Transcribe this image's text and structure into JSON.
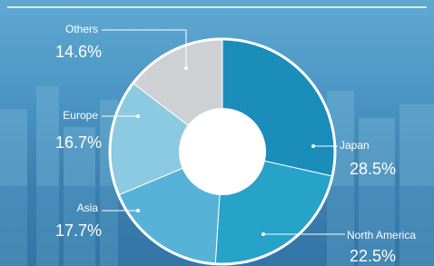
{
  "chart_data": {
    "type": "donut",
    "categories": [
      "Japan",
      "North America",
      "Asia",
      "Europe",
      "Others"
    ],
    "values": [
      28.5,
      22.5,
      17.7,
      16.7,
      14.6
    ],
    "value_labels": [
      "28.5%",
      "22.5%",
      "17.7%",
      "16.7%",
      "14.6%"
    ],
    "colors": [
      "#1a8dba",
      "#27a2c9",
      "#56b3d7",
      "#8ccae2",
      "#cdd1d4"
    ]
  }
}
